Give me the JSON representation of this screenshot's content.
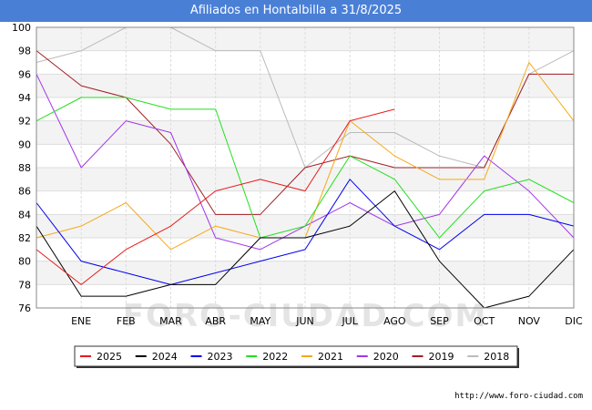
{
  "title": "Afiliados en Hontalbilla a 31/8/2025",
  "source": "http://www.foro-ciudad.com",
  "watermark": "FORO-CIUDAD.COM",
  "chart_data": {
    "type": "line",
    "title": "Afiliados en Hontalbilla a 31/8/2025",
    "xlabel": "",
    "ylabel": "",
    "categories": [
      "",
      "ENE",
      "FEB",
      "MAR",
      "ABR",
      "MAY",
      "JUN",
      "JUL",
      "AGO",
      "SEP",
      "OCT",
      "NOV",
      "DIC"
    ],
    "ylim": [
      76,
      100
    ],
    "yticks": [
      76,
      78,
      80,
      82,
      84,
      86,
      88,
      90,
      92,
      94,
      96,
      98,
      100
    ],
    "grid": true,
    "legend_position": "bottom",
    "series": [
      {
        "name": "2025",
        "color": "#e8191a",
        "values": [
          81,
          78,
          81,
          83,
          86,
          87,
          86,
          92,
          93,
          null,
          null,
          null,
          null
        ]
      },
      {
        "name": "2024",
        "color": "#000000",
        "values": [
          83,
          77,
          77,
          78,
          78,
          82,
          82,
          83,
          86,
          80,
          76,
          77,
          81
        ]
      },
      {
        "name": "2023",
        "color": "#0000ee",
        "values": [
          85,
          80,
          79,
          78,
          79,
          80,
          81,
          87,
          83,
          81,
          84,
          84,
          83
        ]
      },
      {
        "name": "2022",
        "color": "#22e01e",
        "values": [
          92,
          94,
          94,
          93,
          93,
          82,
          83,
          89,
          87,
          82,
          86,
          87,
          85
        ]
      },
      {
        "name": "2021",
        "color": "#f5a81a",
        "values": [
          82,
          83,
          85,
          81,
          83,
          82,
          82,
          92,
          89,
          87,
          87,
          97,
          92
        ]
      },
      {
        "name": "2020",
        "color": "#a235e8",
        "values": [
          96,
          88,
          92,
          91,
          82,
          81,
          83,
          85,
          83,
          84,
          89,
          86,
          82
        ]
      },
      {
        "name": "2019",
        "color": "#a01e24",
        "values": [
          98,
          95,
          94,
          90,
          84,
          84,
          88,
          89,
          88,
          88,
          88,
          96,
          96
        ]
      },
      {
        "name": "2018",
        "color": "#bbbbbb",
        "values": [
          97,
          98,
          100,
          100,
          98,
          98,
          88,
          91,
          91,
          89,
          88,
          96,
          98
        ]
      }
    ]
  }
}
